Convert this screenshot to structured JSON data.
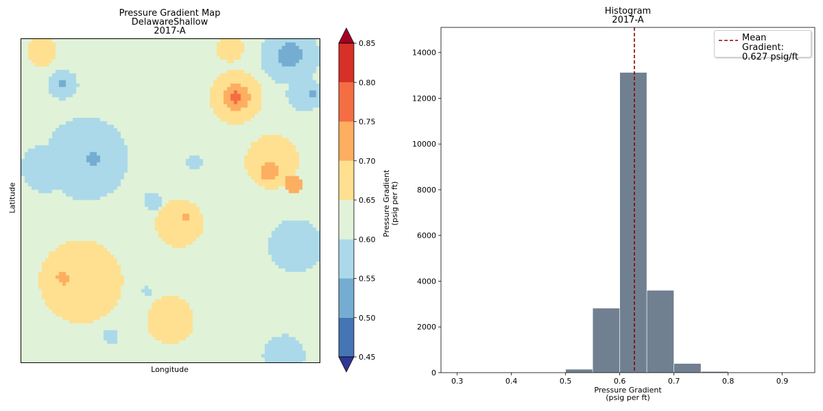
{
  "map": {
    "title": "Pressure Gradient Map",
    "subtitle": "DelawareShallow",
    "period": "2017-A",
    "xlabel": "Longitude",
    "ylabel": "Latitude"
  },
  "colorbar": {
    "label_line1": "Pressure Gradient",
    "label_line2": "(psig per ft)",
    "levels": [
      0.45,
      0.5,
      0.55,
      0.6,
      0.65,
      0.7,
      0.75,
      0.8,
      0.85
    ],
    "tick_labels": [
      "0.45",
      "0.50",
      "0.55",
      "0.60",
      "0.65",
      "0.70",
      "0.75",
      "0.80",
      "0.85"
    ],
    "colors": [
      "#4575b4",
      "#74add1",
      "#abd9e9",
      "#e0f3d8",
      "#fee090",
      "#fdae61",
      "#f46d43",
      "#d73027"
    ],
    "under_color": "#313695",
    "over_color": "#a50026"
  },
  "histogram": {
    "title": "Histogram",
    "period": "2017-A",
    "xlabel_line1": "Pressure Gradient",
    "xlabel_line2": "(psig per ft)",
    "legend_line1": "Mean Gradient:",
    "legend_line2": "0.627 psig/ft"
  },
  "chart_data": [
    {
      "type": "heatmap",
      "title": "Pressure Gradient Map",
      "subtitle": "DelawareShallow",
      "period": "2017-A",
      "xlabel": "Longitude",
      "ylabel": "Latitude",
      "value_range": [
        0.45,
        0.85
      ],
      "value_units": "psig per ft",
      "color_levels": [
        0.45,
        0.5,
        0.55,
        0.6,
        0.65,
        0.7,
        0.75,
        0.8,
        0.85
      ],
      "background_value": 0.62,
      "features": [
        {
          "cx": 0.72,
          "cy": 0.82,
          "r": 0.09,
          "value": 0.68
        },
        {
          "cx": 0.72,
          "cy": 0.82,
          "r": 0.045,
          "value": 0.73
        },
        {
          "cx": 0.72,
          "cy": 0.82,
          "r": 0.018,
          "value": 0.78
        },
        {
          "cx": 0.84,
          "cy": 0.62,
          "r": 0.09,
          "value": 0.67
        },
        {
          "cx": 0.83,
          "cy": 0.59,
          "r": 0.03,
          "value": 0.72
        },
        {
          "cx": 0.91,
          "cy": 0.55,
          "r": 0.03,
          "value": 0.72
        },
        {
          "cx": 0.2,
          "cy": 0.25,
          "r": 0.14,
          "value": 0.67
        },
        {
          "cx": 0.14,
          "cy": 0.26,
          "r": 0.02,
          "value": 0.72
        },
        {
          "cx": 0.53,
          "cy": 0.43,
          "r": 0.08,
          "value": 0.67
        },
        {
          "cx": 0.55,
          "cy": 0.45,
          "r": 0.015,
          "value": 0.72
        },
        {
          "cx": 0.5,
          "cy": 0.13,
          "r": 0.08,
          "value": 0.67
        },
        {
          "cx": 0.7,
          "cy": 0.97,
          "r": 0.045,
          "value": 0.67
        },
        {
          "cx": 0.22,
          "cy": 0.63,
          "r": 0.14,
          "value": 0.58
        },
        {
          "cx": 0.08,
          "cy": 0.6,
          "r": 0.08,
          "value": 0.58
        },
        {
          "cx": 0.14,
          "cy": 0.86,
          "r": 0.05,
          "value": 0.58
        },
        {
          "cx": 0.14,
          "cy": 0.86,
          "r": 0.015,
          "value": 0.53
        },
        {
          "cx": 0.24,
          "cy": 0.63,
          "r": 0.02,
          "value": 0.53
        },
        {
          "cx": 0.9,
          "cy": 0.95,
          "r": 0.1,
          "value": 0.57
        },
        {
          "cx": 0.9,
          "cy": 0.95,
          "r": 0.04,
          "value": 0.53
        },
        {
          "cx": 0.95,
          "cy": 0.83,
          "r": 0.06,
          "value": 0.58
        },
        {
          "cx": 0.98,
          "cy": 0.83,
          "r": 0.015,
          "value": 0.53
        },
        {
          "cx": 0.92,
          "cy": 0.36,
          "r": 0.09,
          "value": 0.58
        },
        {
          "cx": 0.44,
          "cy": 0.5,
          "r": 0.03,
          "value": 0.58
        },
        {
          "cx": 0.42,
          "cy": 0.22,
          "r": 0.015,
          "value": 0.58
        },
        {
          "cx": 0.88,
          "cy": 0.02,
          "r": 0.07,
          "value": 0.58
        },
        {
          "cx": 0.3,
          "cy": 0.08,
          "r": 0.025,
          "value": 0.58
        },
        {
          "cx": 0.58,
          "cy": 0.62,
          "r": 0.025,
          "value": 0.58
        },
        {
          "cx": 0.07,
          "cy": 0.96,
          "r": 0.05,
          "value": 0.67
        }
      ]
    },
    {
      "type": "bar",
      "title": "Histogram",
      "subtitle": "2017-A",
      "xlabel": "Pressure Gradient (psig per ft)",
      "ylabel": "",
      "bin_edges": [
        0.5,
        0.55,
        0.6,
        0.65,
        0.7,
        0.75,
        0.8
      ],
      "values": [
        150,
        2820,
        13130,
        3600,
        400,
        50
      ],
      "mean_line": 0.627,
      "xlim": [
        0.27,
        0.96
      ],
      "ylim": [
        0,
        15100
      ],
      "xticks": [
        0.3,
        0.4,
        0.5,
        0.6,
        0.7,
        0.8,
        0.9
      ],
      "yticks": [
        0,
        2000,
        4000,
        6000,
        8000,
        10000,
        12000,
        14000
      ],
      "legend": "top-right",
      "bar_color": "#708090",
      "mean_color": "#8b0000"
    }
  ]
}
